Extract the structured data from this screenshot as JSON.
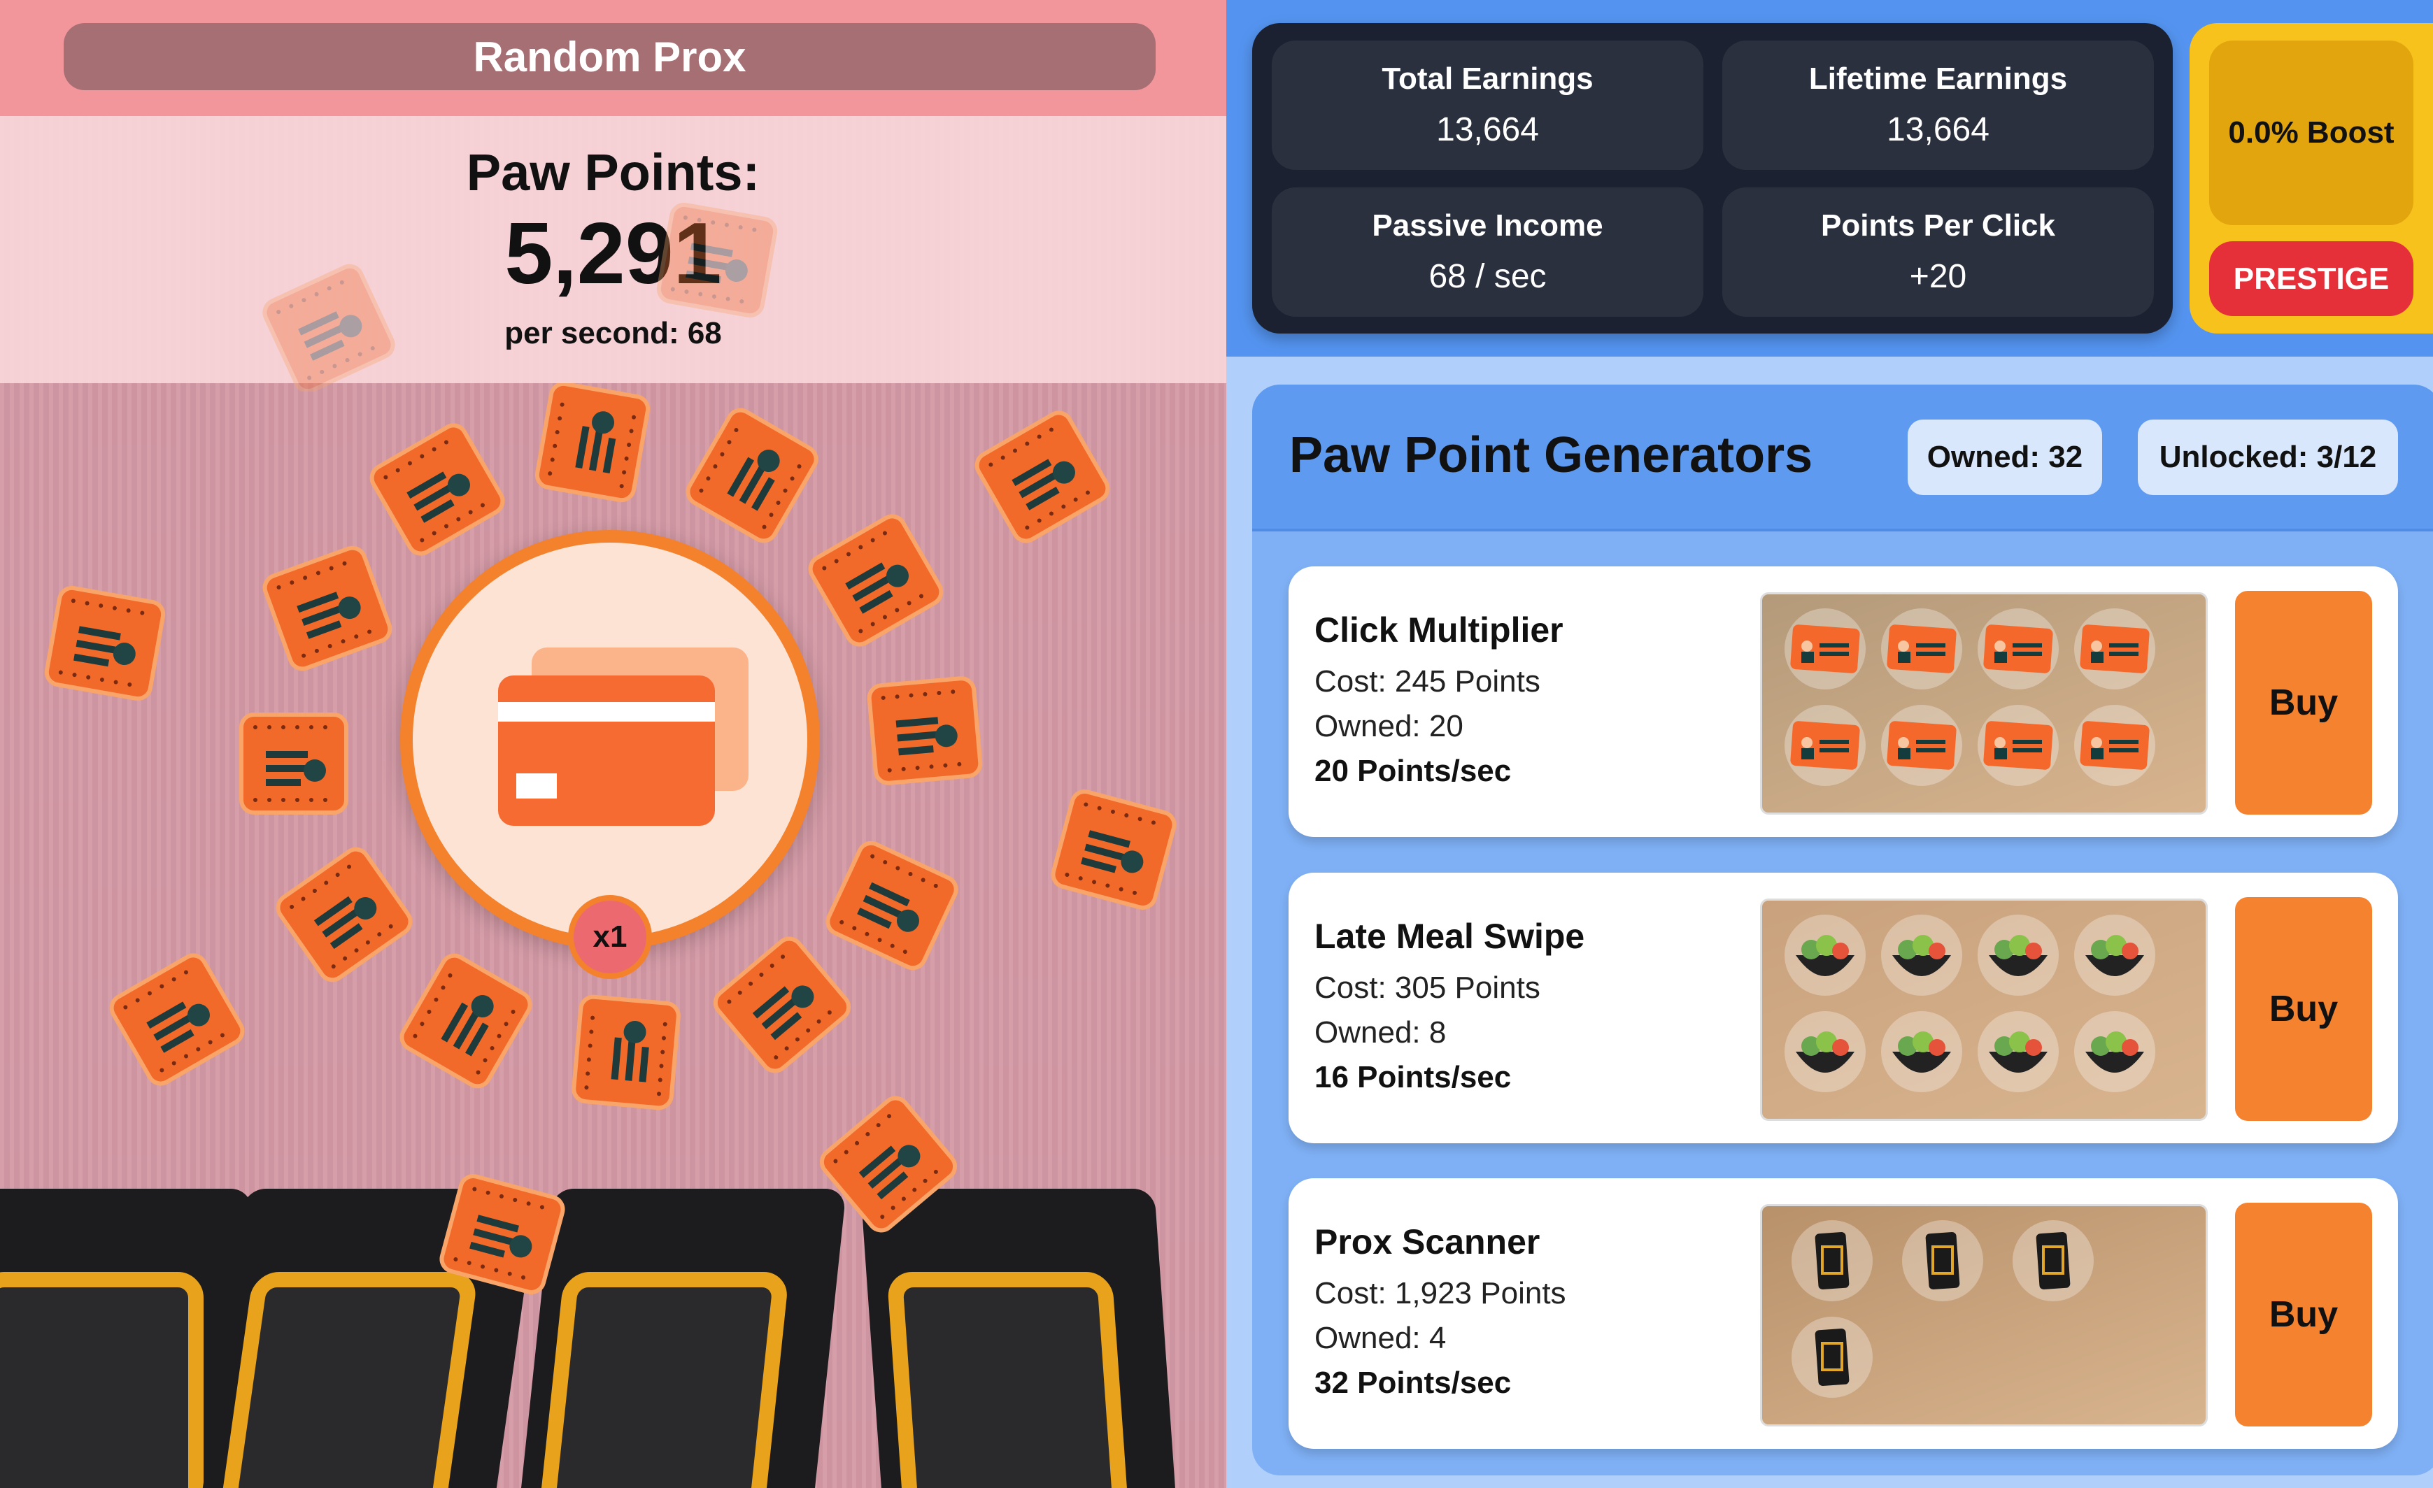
{
  "left": {
    "title": "Random Prox",
    "points_label": "Paw Points:",
    "points_value": "5,291",
    "per_second": "per second: 68",
    "multiplier": "x1"
  },
  "stats": [
    {
      "label": "Total Earnings",
      "value": "13,664"
    },
    {
      "label": "Lifetime Earnings",
      "value": "13,664"
    },
    {
      "label": "Passive Income",
      "value": "68 / sec"
    },
    {
      "label": "Points Per Click",
      "value": "+20"
    }
  ],
  "boost": {
    "label": "0.0% Boost",
    "prestige_label": "PRESTIGE"
  },
  "generators": {
    "title": "Paw Point Generators",
    "owned_badge": "Owned: 32",
    "unlocked_badge": "Unlocked: 3/12",
    "items": [
      {
        "name": "Click Multiplier",
        "cost": "Cost: 245 Points",
        "owned": "Owned: 20",
        "rate": "20 Points/sec",
        "buy": "Buy",
        "icon": "id-card-icon",
        "icon_count": 8
      },
      {
        "name": "Late Meal Swipe",
        "cost": "Cost: 305 Points",
        "owned": "Owned: 8",
        "rate": "16 Points/sec",
        "buy": "Buy",
        "icon": "salad-bowl-icon",
        "icon_count": 8
      },
      {
        "name": "Prox Scanner",
        "cost": "Cost: 1,923 Points",
        "owned": "Owned: 4",
        "rate": "32 Points/sec",
        "buy": "Buy",
        "icon": "prox-scanner-icon",
        "icon_count": 4
      }
    ]
  },
  "colors": {
    "accent": "#f5822e",
    "prestige": "#e5303a",
    "boost": "#f8c21c",
    "panel": "#1b2130",
    "blue": "#5494f0"
  }
}
